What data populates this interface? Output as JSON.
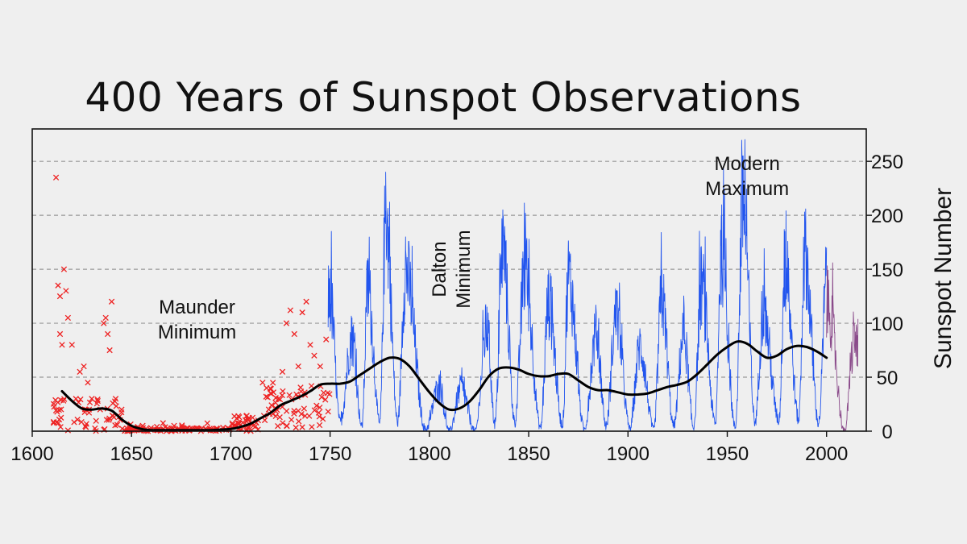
{
  "chart_data": {
    "type": "line",
    "title": "400 Years of Sunspot Observations",
    "ylabel": "Sunspot Number",
    "xlabel": "",
    "xlim": [
      1600,
      2020
    ],
    "ylim": [
      0,
      280
    ],
    "x_ticks": [
      1600,
      1650,
      1700,
      1750,
      1800,
      1850,
      1900,
      1950,
      2000
    ],
    "y_ticks": [
      0,
      50,
      100,
      150,
      200,
      250
    ],
    "y_axis_side": "right",
    "grid": "horizontal dashed",
    "colors": {
      "early_observations": "#ee2222",
      "monthly_series": "#2255ee",
      "recent_series": "#8a4a8a",
      "smoothed": "#000000",
      "grid": "#999999"
    },
    "annotations": [
      {
        "label": [
          "Maunder",
          "Minimum"
        ],
        "x": 1683,
        "y": 109
      },
      {
        "label": [
          "Dalton",
          "Minimum"
        ],
        "x": 1811,
        "y": 150,
        "rotated": true
      },
      {
        "label": [
          "Modern",
          "Maximum"
        ],
        "x": 1960,
        "y": 242
      }
    ],
    "series": [
      {
        "style": "scatter-x",
        "color": "#ee2222",
        "cluster_points": [
          [
            1612,
            235
          ],
          [
            1613,
            135
          ],
          [
            1614,
            125
          ],
          [
            1614,
            90
          ],
          [
            1615,
            80
          ],
          [
            1616,
            150
          ],
          [
            1617,
            130
          ],
          [
            1618,
            105
          ],
          [
            1620,
            80
          ],
          [
            1622,
            30
          ],
          [
            1624,
            55
          ],
          [
            1626,
            60
          ],
          [
            1628,
            45
          ],
          [
            1630,
            30
          ],
          [
            1633,
            28
          ],
          [
            1636,
            100
          ],
          [
            1637,
            105
          ],
          [
            1638,
            90
          ],
          [
            1639,
            75
          ],
          [
            1640,
            120
          ],
          [
            1642,
            30
          ],
          [
            1645,
            20
          ],
          [
            1716,
            45
          ],
          [
            1718,
            40
          ],
          [
            1720,
            35
          ],
          [
            1724,
            30
          ],
          [
            1726,
            55
          ],
          [
            1728,
            100
          ],
          [
            1730,
            112
          ],
          [
            1732,
            90
          ],
          [
            1734,
            60
          ],
          [
            1736,
            110
          ],
          [
            1738,
            120
          ],
          [
            1740,
            80
          ],
          [
            1742,
            70
          ],
          [
            1745,
            60
          ],
          [
            1748,
            85
          ]
        ]
      },
      {
        "style": "monthly-line",
        "color": "#2255ee",
        "cycle_maxima": [
          [
            1750,
            150
          ],
          [
            1761,
            105
          ],
          [
            1769,
            160
          ],
          [
            1778,
            240
          ],
          [
            1788,
            180
          ],
          [
            1805,
            50
          ],
          [
            1816,
            48
          ],
          [
            1829,
            115
          ],
          [
            1837,
            205
          ],
          [
            1848,
            180
          ],
          [
            1860,
            145
          ],
          [
            1870,
            175
          ],
          [
            1884,
            110
          ],
          [
            1894,
            130
          ],
          [
            1906,
            95
          ],
          [
            1917,
            150
          ],
          [
            1928,
            110
          ],
          [
            1937,
            165
          ],
          [
            1947,
            200
          ],
          [
            1958,
            255
          ],
          [
            1968,
            135
          ],
          [
            1979,
            185
          ],
          [
            1989,
            200
          ],
          [
            2000,
            170
          ]
        ],
        "cycle_minima": [
          [
            1755,
            10
          ],
          [
            1766,
            5
          ],
          [
            1775,
            8
          ],
          [
            1784,
            10
          ],
          [
            1798,
            2
          ],
          [
            1810,
            0
          ],
          [
            1823,
            0
          ],
          [
            1833,
            8
          ],
          [
            1843,
            10
          ],
          [
            1856,
            4
          ],
          [
            1867,
            7
          ],
          [
            1878,
            2
          ],
          [
            1889,
            6
          ],
          [
            1901,
            3
          ],
          [
            1913,
            2
          ],
          [
            1923,
            6
          ],
          [
            1933,
            4
          ],
          [
            1944,
            8
          ],
          [
            1954,
            4
          ],
          [
            1964,
            10
          ],
          [
            1976,
            12
          ],
          [
            1986,
            13
          ],
          [
            1996,
            9
          ]
        ]
      },
      {
        "style": "monthly-line",
        "color": "#8a4a8a",
        "cycle_maxima": [
          [
            2001,
            140
          ],
          [
            2014,
            100
          ]
        ],
        "cycle_minima": [
          [
            2009,
            0
          ]
        ]
      },
      {
        "style": "smoothed-line",
        "color": "#000000",
        "points": [
          [
            1615,
            37
          ],
          [
            1620,
            28
          ],
          [
            1625,
            21
          ],
          [
            1630,
            20
          ],
          [
            1635,
            21
          ],
          [
            1640,
            19
          ],
          [
            1645,
            11
          ],
          [
            1650,
            5
          ],
          [
            1655,
            2
          ],
          [
            1660,
            1
          ],
          [
            1670,
            1
          ],
          [
            1680,
            1
          ],
          [
            1690,
            1
          ],
          [
            1700,
            2
          ],
          [
            1705,
            4
          ],
          [
            1710,
            7
          ],
          [
            1715,
            12
          ],
          [
            1720,
            17
          ],
          [
            1725,
            24
          ],
          [
            1730,
            28
          ],
          [
            1735,
            32
          ],
          [
            1740,
            37
          ],
          [
            1745,
            43
          ],
          [
            1750,
            44
          ],
          [
            1755,
            44
          ],
          [
            1760,
            46
          ],
          [
            1765,
            52
          ],
          [
            1770,
            58
          ],
          [
            1775,
            64
          ],
          [
            1780,
            68
          ],
          [
            1785,
            67
          ],
          [
            1790,
            60
          ],
          [
            1795,
            48
          ],
          [
            1800,
            36
          ],
          [
            1805,
            26
          ],
          [
            1810,
            20
          ],
          [
            1815,
            21
          ],
          [
            1820,
            27
          ],
          [
            1825,
            38
          ],
          [
            1830,
            51
          ],
          [
            1835,
            58
          ],
          [
            1840,
            59
          ],
          [
            1845,
            57
          ],
          [
            1850,
            53
          ],
          [
            1855,
            51
          ],
          [
            1860,
            51
          ],
          [
            1865,
            53
          ],
          [
            1870,
            53
          ],
          [
            1875,
            47
          ],
          [
            1880,
            41
          ],
          [
            1885,
            38
          ],
          [
            1890,
            38
          ],
          [
            1895,
            36
          ],
          [
            1900,
            34
          ],
          [
            1905,
            34
          ],
          [
            1910,
            35
          ],
          [
            1915,
            38
          ],
          [
            1920,
            41
          ],
          [
            1925,
            43
          ],
          [
            1930,
            46
          ],
          [
            1935,
            53
          ],
          [
            1940,
            62
          ],
          [
            1945,
            71
          ],
          [
            1950,
            78
          ],
          [
            1955,
            83
          ],
          [
            1960,
            81
          ],
          [
            1965,
            74
          ],
          [
            1970,
            68
          ],
          [
            1975,
            70
          ],
          [
            1980,
            76
          ],
          [
            1985,
            79
          ],
          [
            1990,
            78
          ],
          [
            1995,
            74
          ],
          [
            2000,
            68
          ]
        ]
      }
    ]
  }
}
